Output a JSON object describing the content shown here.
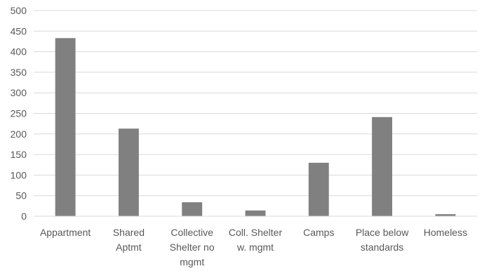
{
  "chart_data": {
    "type": "bar",
    "title": "",
    "xlabel": "",
    "ylabel": "",
    "categories": [
      [
        "Appartment"
      ],
      [
        "Shared",
        "Aptmt"
      ],
      [
        "Collective",
        "Shelter no",
        "mgmt"
      ],
      [
        "Coll. Shelter",
        "w. mgmt"
      ],
      [
        "Camps"
      ],
      [
        "Place below",
        "standards"
      ],
      [
        "Homeless"
      ]
    ],
    "values": [
      433,
      213,
      34,
      14,
      130,
      241,
      5
    ],
    "ylim": [
      0,
      500
    ],
    "yticks": [
      0,
      50,
      100,
      150,
      200,
      250,
      300,
      350,
      400,
      450,
      500
    ],
    "grid": true,
    "legend": "none",
    "bar_color": "#808080",
    "grid_color": "#d9d9d9",
    "axis_color": "#d9d9d9",
    "text_color": "#595959"
  }
}
